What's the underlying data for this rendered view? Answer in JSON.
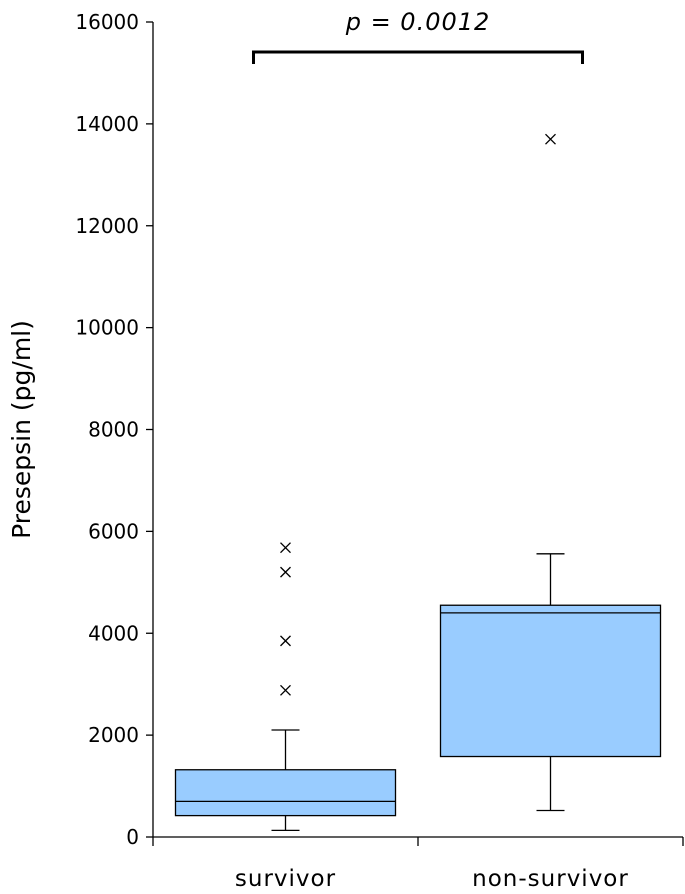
{
  "chart_data": {
    "type": "box",
    "categories": [
      "survivor",
      "non-survivor"
    ],
    "ylabel": "Presepsin (pg/ml)",
    "ylim": [
      0,
      16000
    ],
    "yticks": [
      0,
      2000,
      4000,
      6000,
      8000,
      10000,
      12000,
      14000,
      16000
    ],
    "box_color": "#99ccff",
    "grid": false,
    "annotation": {
      "text": "p = 0.0012",
      "between": [
        "survivor",
        "non-survivor"
      ]
    },
    "series": [
      {
        "category": "survivor",
        "min": 130,
        "q1": 420,
        "median": 700,
        "q3": 1320,
        "max": 2100,
        "outliers": [
          2880,
          3850,
          5200,
          5680
        ]
      },
      {
        "category": "non-survivor",
        "min": 520,
        "q1": 1580,
        "median": 4400,
        "q3": 4550,
        "max": 5560,
        "outliers": [
          13700
        ]
      }
    ]
  }
}
